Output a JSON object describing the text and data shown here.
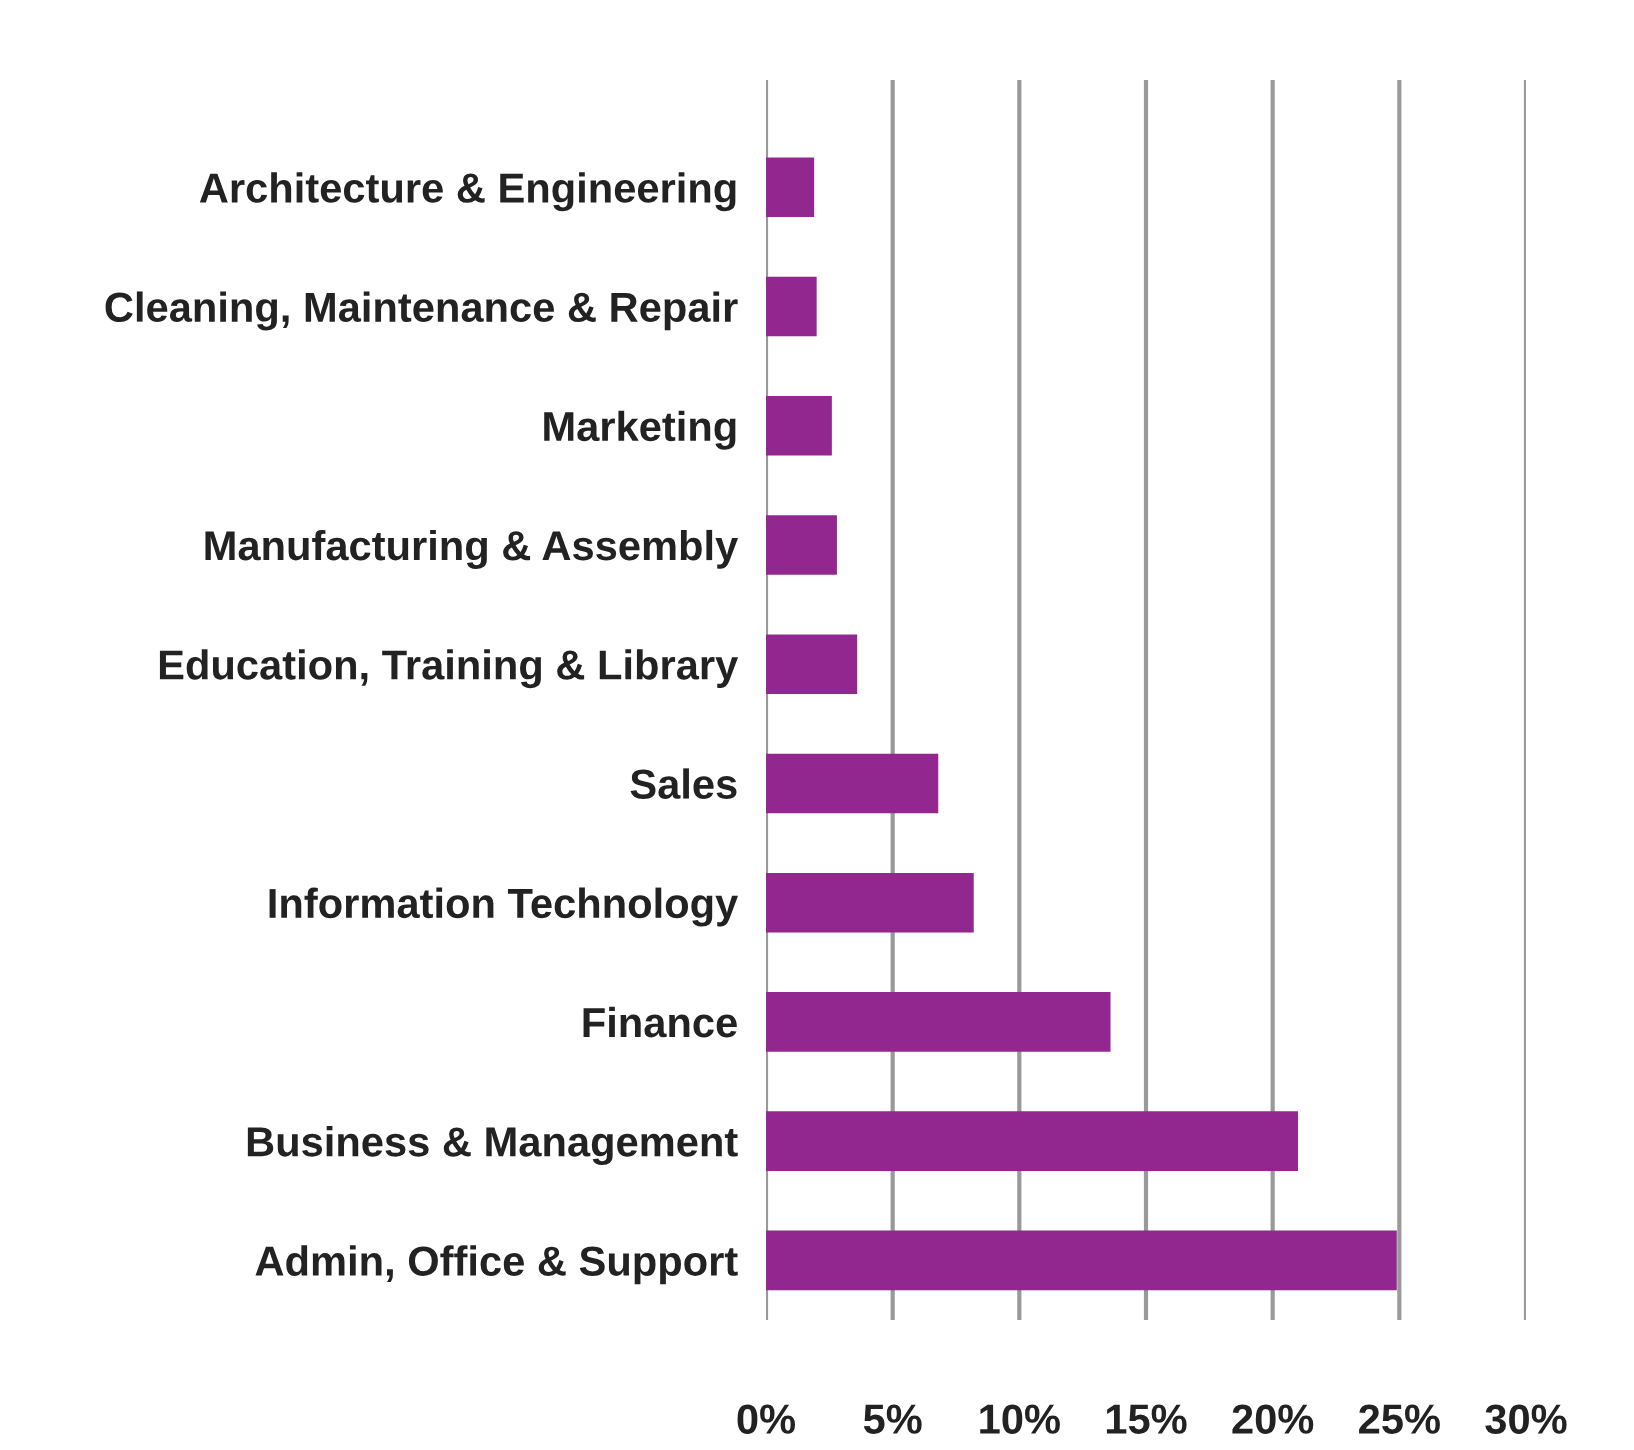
{
  "chart_data": {
    "type": "bar",
    "orientation": "horizontal",
    "categories": [
      "Architecture & Engineering",
      "Cleaning, Maintenance & Repair",
      "Marketing",
      "Manufacturing & Assembly",
      "Education, Training & Library",
      "Sales",
      "Information Technology",
      "Finance",
      "Business & Management",
      "Admin, Office & Support"
    ],
    "values": [
      1.9,
      2.0,
      2.6,
      2.8,
      3.6,
      6.8,
      8.2,
      13.6,
      21.0,
      24.9
    ],
    "color": "#92278f",
    "xlim": [
      0,
      30
    ],
    "xticks": [
      {
        "value": 0,
        "label": "0%"
      },
      {
        "value": 5,
        "label": "5%"
      },
      {
        "value": 10,
        "label": "10%"
      },
      {
        "value": 15,
        "label": "15%"
      },
      {
        "value": 20,
        "label": "20%"
      },
      {
        "value": 25,
        "label": "25%"
      },
      {
        "value": 30,
        "label": "30%"
      }
    ],
    "grid": "x"
  }
}
